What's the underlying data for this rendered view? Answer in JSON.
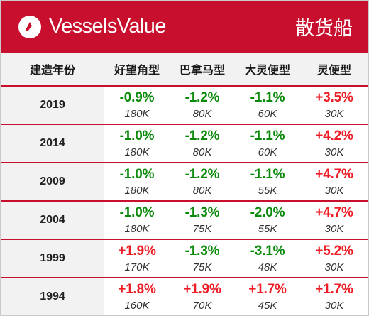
{
  "header": {
    "brand_name": "VesselsValue",
    "sector_title": "散货船",
    "colors": {
      "brand_red": "#c8102e",
      "negative": "#0a8a0a",
      "positive": "#ee1c24"
    }
  },
  "table": {
    "columns": [
      "建造年份",
      "好望角型",
      "巴拿马型",
      "大灵便型",
      "灵便型"
    ],
    "rows": [
      {
        "year": "2019",
        "cells": [
          {
            "change": "-0.9%",
            "size": "180K",
            "direction": "neg"
          },
          {
            "change": "-1.2%",
            "size": "80K",
            "direction": "neg"
          },
          {
            "change": "-1.1%",
            "size": "60K",
            "direction": "neg"
          },
          {
            "change": "+3.5%",
            "size": "30K",
            "direction": "pos"
          }
        ]
      },
      {
        "year": "2014",
        "cells": [
          {
            "change": "-1.0%",
            "size": "180K",
            "direction": "neg"
          },
          {
            "change": "-1.2%",
            "size": "80K",
            "direction": "neg"
          },
          {
            "change": "-1.1%",
            "size": "60K",
            "direction": "neg"
          },
          {
            "change": "+4.2%",
            "size": "30K",
            "direction": "pos"
          }
        ]
      },
      {
        "year": "2009",
        "cells": [
          {
            "change": "-1.0%",
            "size": "180K",
            "direction": "neg"
          },
          {
            "change": "-1.2%",
            "size": "80K",
            "direction": "neg"
          },
          {
            "change": "-1.1%",
            "size": "55K",
            "direction": "neg"
          },
          {
            "change": "+4.7%",
            "size": "30K",
            "direction": "pos"
          }
        ]
      },
      {
        "year": "2004",
        "cells": [
          {
            "change": "-1.0%",
            "size": "180K",
            "direction": "neg"
          },
          {
            "change": "-1.3%",
            "size": "75K",
            "direction": "neg"
          },
          {
            "change": "-2.0%",
            "size": "55K",
            "direction": "neg"
          },
          {
            "change": "+4.7%",
            "size": "30K",
            "direction": "pos"
          }
        ]
      },
      {
        "year": "1999",
        "cells": [
          {
            "change": "+1.9%",
            "size": "170K",
            "direction": "pos"
          },
          {
            "change": "-1.3%",
            "size": "75K",
            "direction": "neg"
          },
          {
            "change": "-3.1%",
            "size": "48K",
            "direction": "neg"
          },
          {
            "change": "+5.2%",
            "size": "30K",
            "direction": "pos"
          }
        ]
      },
      {
        "year": "1994",
        "cells": [
          {
            "change": "+1.8%",
            "size": "160K",
            "direction": "pos"
          },
          {
            "change": "+1.9%",
            "size": "70K",
            "direction": "pos"
          },
          {
            "change": "+1.7%",
            "size": "45K",
            "direction": "pos"
          },
          {
            "change": "+1.7%",
            "size": "30K",
            "direction": "pos"
          }
        ]
      }
    ]
  },
  "chart_data": {
    "type": "table",
    "columns": [
      "建造年份",
      "好望角型",
      "巴拿马型",
      "大灵便型",
      "灵便型"
    ],
    "rows": [
      [
        "2019",
        "-0.9% 180K",
        "-1.2% 80K",
        "-1.1% 60K",
        "+3.5% 30K"
      ],
      [
        "2014",
        "-1.0% 180K",
        "-1.2% 80K",
        "-1.1% 60K",
        "+4.2% 30K"
      ],
      [
        "2009",
        "-1.0% 180K",
        "-1.2% 80K",
        "-1.1% 55K",
        "+4.7% 30K"
      ],
      [
        "2004",
        "-1.0% 180K",
        "-1.3% 75K",
        "-2.0% 55K",
        "+4.7% 30K"
      ],
      [
        "1999",
        "+1.9% 170K",
        "-1.3% 75K",
        "-3.1% 48K",
        "+5.2% 30K"
      ],
      [
        "1994",
        "+1.8% 160K",
        "+1.9% 70K",
        "+1.7% 45K",
        "+1.7% 30K"
      ]
    ]
  }
}
